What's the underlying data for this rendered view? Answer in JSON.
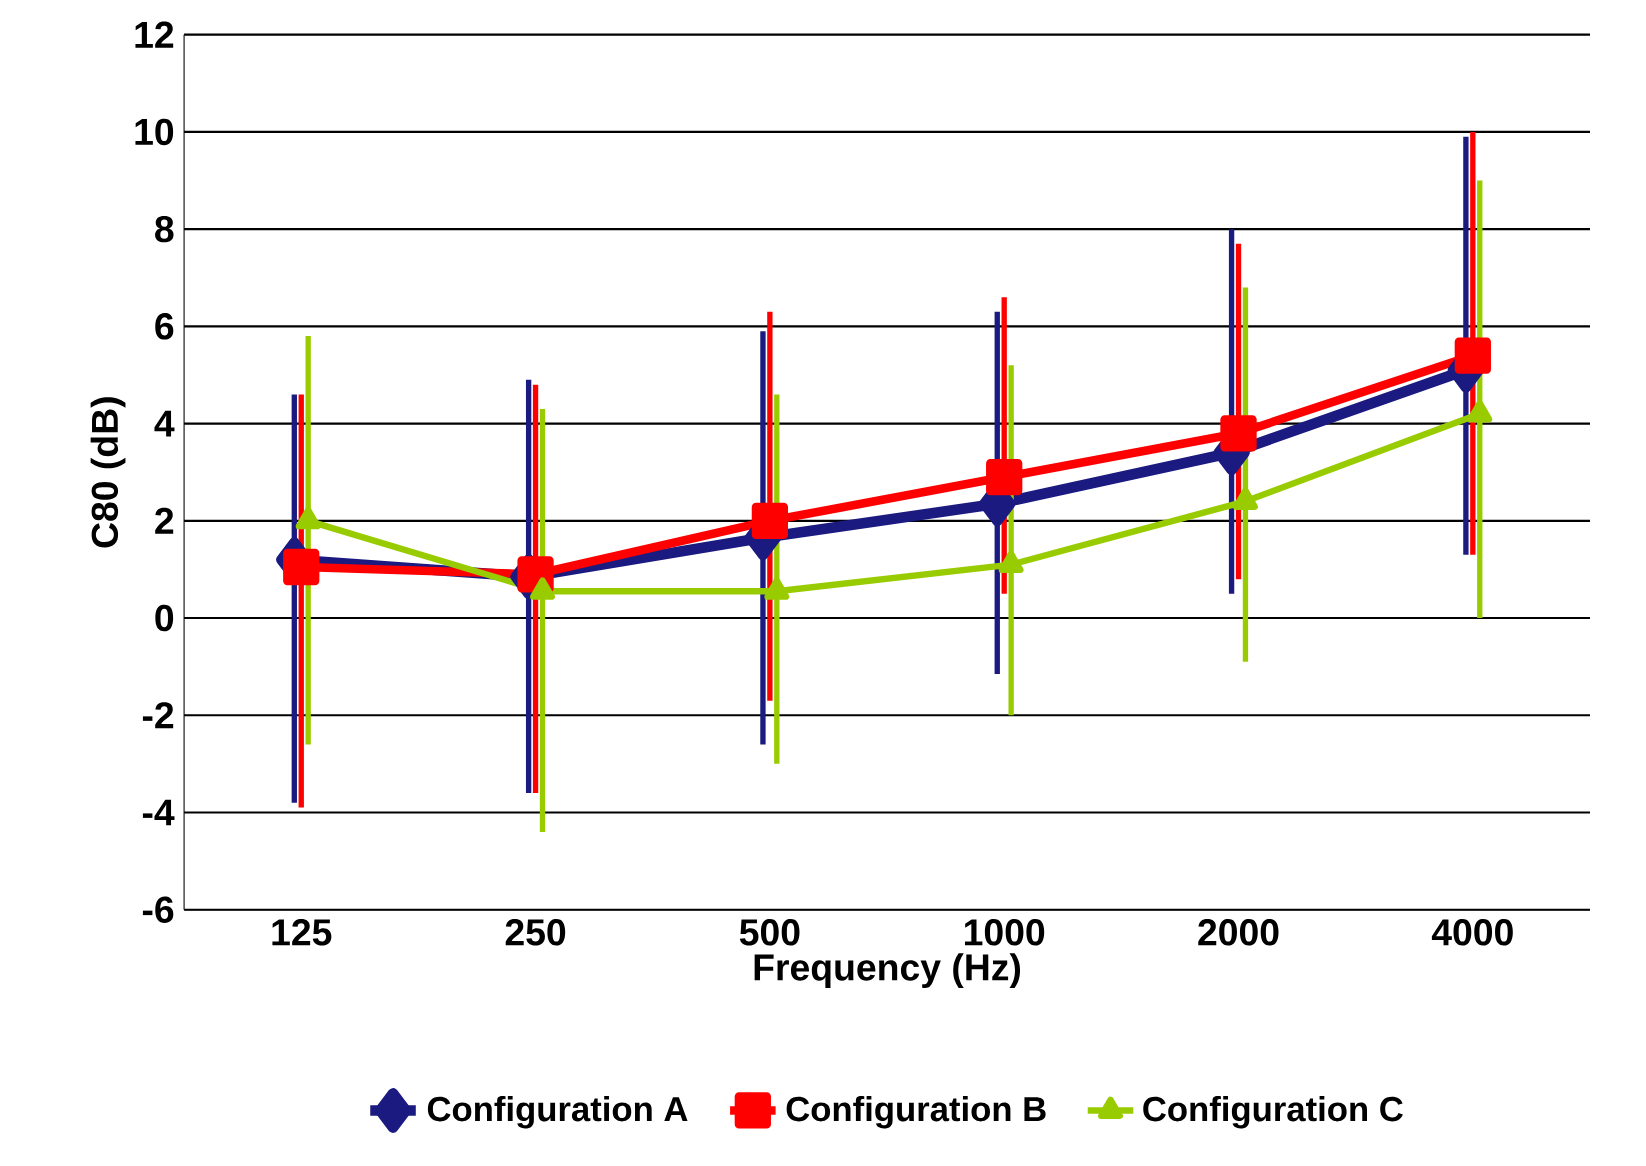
{
  "chart_data": {
    "type": "line",
    "xlabel": "Frequency (Hz)",
    "ylabel": "C80 (dB)",
    "categories": [
      "125",
      "250",
      "500",
      "1000",
      "2000",
      "4000"
    ],
    "series": [
      {
        "name": "Configuration A",
        "color": "#1a1a80",
        "marker": "diamond",
        "values": [
          1.2,
          0.85,
          1.65,
          2.35,
          3.4,
          5.1
        ],
        "errors": [
          [
            -3.8,
            4.6
          ],
          [
            -3.6,
            4.9
          ],
          [
            -2.6,
            5.9
          ],
          [
            -1.15,
            6.3
          ],
          [
            0.5,
            8.0
          ],
          [
            1.3,
            9.9
          ]
        ]
      },
      {
        "name": "Configuration B",
        "color": "#ff0000",
        "marker": "square",
        "values": [
          1.05,
          0.9,
          2.0,
          2.9,
          3.8,
          5.4
        ],
        "errors": [
          [
            -3.9,
            4.6
          ],
          [
            -3.6,
            4.8
          ],
          [
            -1.7,
            6.3
          ],
          [
            0.5,
            6.6
          ],
          [
            0.8,
            7.7
          ],
          [
            1.3,
            10.0
          ]
        ]
      },
      {
        "name": "Configuration C",
        "color": "#99cc00",
        "marker": "triangle",
        "values": [
          2.0,
          0.55,
          0.55,
          1.1,
          2.4,
          4.2
        ],
        "errors": [
          [
            -2.6,
            5.8
          ],
          [
            -4.4,
            4.3
          ],
          [
            -3.0,
            4.6
          ],
          [
            -2.0,
            5.2
          ],
          [
            -0.9,
            6.8
          ],
          [
            0.0,
            9.0
          ]
        ]
      }
    ],
    "ylim": [
      -6,
      12
    ],
    "yticks": [
      -6,
      -4,
      -2,
      0,
      2,
      4,
      6,
      8,
      10,
      12
    ],
    "grid": "y",
    "legend": "bottom",
    "line_style": "solid"
  }
}
